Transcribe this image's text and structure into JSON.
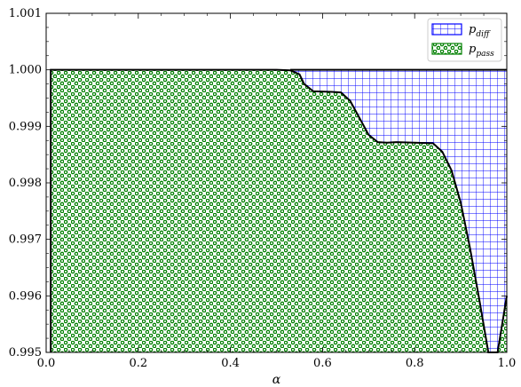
{
  "chart_data": {
    "type": "area",
    "title": "",
    "xlabel": "α",
    "ylabel": "",
    "xlim": [
      0,
      1
    ],
    "ylim": [
      0.995,
      1.001
    ],
    "x_ticks": [
      "0.0",
      "0.2",
      "0.4",
      "0.6",
      "0.8",
      "1.0"
    ],
    "y_ticks": [
      "0.995",
      "0.996",
      "0.997",
      "0.998",
      "0.999",
      "1.000",
      "1.001"
    ],
    "grid": false,
    "legend_placement": "top-right",
    "series": [
      {
        "name": "p_pass",
        "label_main": "p",
        "label_sub": "pass",
        "hatch": "dots",
        "color": "#008000",
        "x": [
          0.01,
          0.02,
          0.05,
          0.1,
          0.2,
          0.3,
          0.4,
          0.5,
          0.53,
          0.55,
          0.56,
          0.58,
          0.62,
          0.64,
          0.66,
          0.68,
          0.7,
          0.72,
          0.74,
          0.76,
          0.8,
          0.84,
          0.86,
          0.88,
          0.9,
          0.92,
          0.94,
          0.96,
          0.98,
          1.0
        ],
        "y": [
          1.0,
          1.0,
          1.0,
          1.0,
          1.0,
          1.0,
          1.0,
          1.0,
          0.99999,
          0.99992,
          0.99975,
          0.99962,
          0.99961,
          0.9996,
          0.99945,
          0.99915,
          0.99885,
          0.99872,
          0.99871,
          0.99872,
          0.99871,
          0.9987,
          0.99855,
          0.99822,
          0.99765,
          0.99685,
          0.99595,
          0.9949,
          0.9938,
          0.996
        ]
      },
      {
        "name": "p_diff",
        "label_main": "p",
        "label_sub": "diff",
        "hatch": "grid",
        "color": "#0000ff",
        "upper": 1.0,
        "x": [
          0.53,
          1.0
        ]
      }
    ]
  }
}
